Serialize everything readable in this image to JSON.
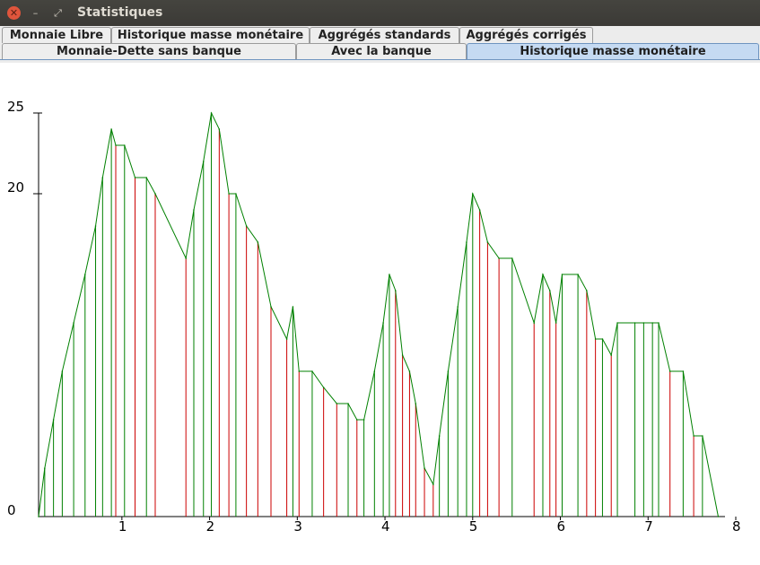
{
  "window": {
    "title": "Statistiques",
    "close_icon": "close-icon",
    "minimize_icon": "minimize-icon",
    "maximize_icon": "maximize-icon"
  },
  "tabs_row1": [
    {
      "label": "Monnaie Libre"
    },
    {
      "label": "Historique masse monétaire"
    },
    {
      "label": "Aggrégés standards"
    },
    {
      "label": "Aggrégés corrigés"
    }
  ],
  "tabs_row2": [
    {
      "label": "Monnaie-Dette sans banque"
    },
    {
      "label": "Avec la banque"
    },
    {
      "label": "Historique masse monétaire",
      "selected": true
    }
  ],
  "chart_data": {
    "type": "line",
    "x_ticks": [
      "1",
      "2",
      "3",
      "4",
      "5",
      "6",
      "7",
      "8"
    ],
    "y_ticks": [
      "0",
      "20",
      "25"
    ],
    "xlim": [
      0.05,
      8.0
    ],
    "ylim": [
      0,
      25
    ],
    "colors": {
      "line": "#008000",
      "increase": "#008000",
      "decrease": "#cc0000"
    },
    "series": [
      {
        "x": [
          0.05,
          0.12,
          0.22,
          0.32,
          0.45,
          0.58,
          0.7,
          0.78,
          0.88,
          0.93,
          1.03,
          1.15,
          1.28,
          1.38,
          1.73,
          1.82,
          1.93,
          2.02,
          2.11,
          2.22,
          2.3,
          2.42,
          2.55,
          2.7,
          2.88,
          2.95,
          3.02,
          3.17,
          3.3,
          3.45,
          3.58,
          3.68,
          3.76,
          3.88,
          3.98,
          4.05,
          4.12,
          4.2,
          4.28,
          4.35,
          4.45,
          4.55,
          4.62,
          4.72,
          4.83,
          4.93,
          5.0,
          5.08,
          5.17,
          5.3,
          5.45,
          5.7,
          5.8,
          5.88,
          5.95,
          6.02,
          6.2,
          6.3,
          6.4,
          6.48,
          6.58,
          6.65,
          6.85,
          6.95,
          7.05,
          7.12,
          7.25,
          7.4,
          7.52,
          7.62,
          7.8
        ],
        "y": [
          0,
          3,
          6,
          9,
          12,
          15,
          18,
          21,
          24,
          23,
          23,
          21,
          21,
          20,
          16,
          19,
          22,
          25,
          24,
          20,
          20,
          18,
          17,
          13,
          11,
          13,
          9,
          9,
          8,
          7,
          7,
          6,
          6,
          9,
          12,
          15,
          14,
          10,
          9,
          7,
          3,
          2,
          5,
          9,
          13,
          17,
          20,
          19,
          17,
          16,
          16,
          12,
          15,
          14,
          12,
          15,
          15,
          14,
          11,
          11,
          10,
          12,
          12,
          12,
          12,
          12,
          9,
          9,
          5,
          5,
          0
        ]
      }
    ]
  }
}
